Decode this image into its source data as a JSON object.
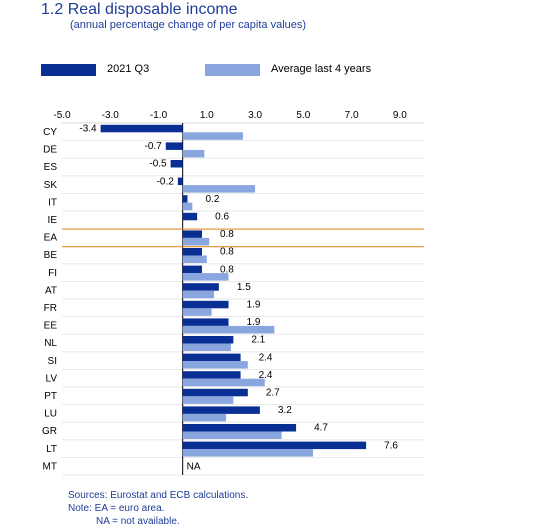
{
  "header": {
    "title": "1.2 Real disposable income",
    "subtitle": "(annual percentage change of per capita values)"
  },
  "legend": [
    {
      "label": "2021 Q3",
      "color": "#0a2f94"
    },
    {
      "label": "Average last 4 years",
      "color": "#8aa6de"
    }
  ],
  "chart_data": {
    "type": "bar",
    "orientation": "horizontal",
    "categories": [
      "CY",
      "DE",
      "ES",
      "SK",
      "IT",
      "IE",
      "EA",
      "BE",
      "FI",
      "AT",
      "FR",
      "EE",
      "NL",
      "SI",
      "LV",
      "PT",
      "LU",
      "GR",
      "LT",
      "MT"
    ],
    "series": [
      {
        "name": "2021 Q3",
        "color": "#0a2f94",
        "values": [
          -3.4,
          -0.7,
          -0.5,
          -0.2,
          0.2,
          0.6,
          0.8,
          0.8,
          0.8,
          1.5,
          1.9,
          1.9,
          2.1,
          2.4,
          2.4,
          2.7,
          3.2,
          4.7,
          7.6,
          null
        ]
      },
      {
        "name": "Average last 4 years",
        "color": "#8aa6de",
        "values": [
          2.5,
          0.9,
          0.0,
          3.0,
          0.4,
          0.0,
          1.1,
          1.0,
          1.9,
          1.3,
          1.2,
          3.8,
          2.0,
          2.7,
          3.4,
          2.1,
          1.8,
          4.1,
          5.4,
          null
        ]
      }
    ],
    "data_labels": [
      "-3.4",
      "-0.7",
      "-0.5",
      "-0.2",
      "0.2",
      "0.6",
      "0.8",
      "0.8",
      "0.8",
      "1.5",
      "1.9",
      "1.9",
      "2.1",
      "2.4",
      "2.4",
      "2.7",
      "3.2",
      "4.7",
      "7.6",
      "NA"
    ],
    "xticks": [
      "-5.0",
      "-3.0",
      "-1.0",
      "1.0",
      "3.0",
      "5.0",
      "7.0",
      "9.0"
    ],
    "xlim": [
      -5.0,
      10.0
    ],
    "highlight_category": "EA",
    "highlight_color": "#e8891e",
    "legend_position": "top"
  },
  "footer": {
    "sources": "Sources: Eurostat and ECB calculations.",
    "note": "Note: EA = euro area.",
    "note2": "NA = not available."
  }
}
